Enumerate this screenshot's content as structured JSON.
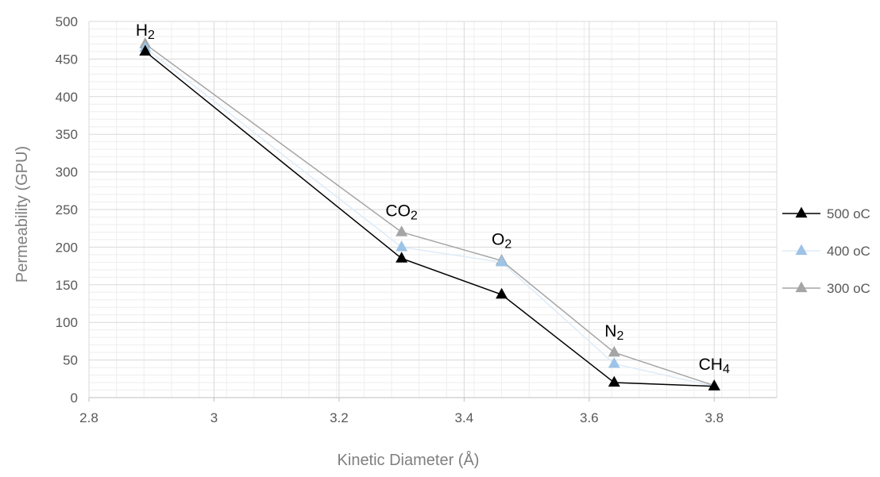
{
  "chart_data": {
    "type": "scatter",
    "xlabel": "Kinetic Diameter (Å)",
    "ylabel": "Permeability (GPU)",
    "xlim": [
      2.8,
      3.9
    ],
    "ylim": [
      0,
      500
    ],
    "x_ticks": [
      "2.8",
      "3",
      "3.2",
      "3.4",
      "3.6",
      "3.8"
    ],
    "y_ticks": [
      "0",
      "50",
      "100",
      "150",
      "200",
      "250",
      "300",
      "350",
      "400",
      "450",
      "500"
    ],
    "grid": true,
    "legend_position": "right",
    "marker": "triangle",
    "lines": "straight",
    "gas_labels": [
      {
        "text": "H₂",
        "x": 2.89,
        "y": 460
      },
      {
        "text": "CO₂",
        "x": 3.3,
        "y": 220
      },
      {
        "text": "O₂",
        "x": 3.46,
        "y": 182
      },
      {
        "text": "N₂",
        "x": 3.64,
        "y": 60
      },
      {
        "text": "CH₄",
        "x": 3.8,
        "y": 16
      }
    ],
    "series": [
      {
        "name": "500 oC",
        "color": "#000000",
        "line_color": "#000000",
        "x": [
          2.89,
          3.3,
          3.46,
          3.64,
          3.8
        ],
        "y": [
          460,
          185,
          137,
          20,
          15
        ]
      },
      {
        "name": "400 oC",
        "color": "#9dc3e6",
        "line_color": "#deebf7",
        "x": [
          2.89,
          3.3,
          3.46,
          3.64,
          3.8
        ],
        "y": [
          465,
          200,
          180,
          45,
          15
        ]
      },
      {
        "name": "300 oC",
        "color": "#a5a5a5",
        "line_color": "#a5a5a5",
        "x": [
          2.89,
          3.3,
          3.46,
          3.64,
          3.8
        ],
        "y": [
          470,
          220,
          182,
          60,
          16
        ]
      }
    ]
  }
}
